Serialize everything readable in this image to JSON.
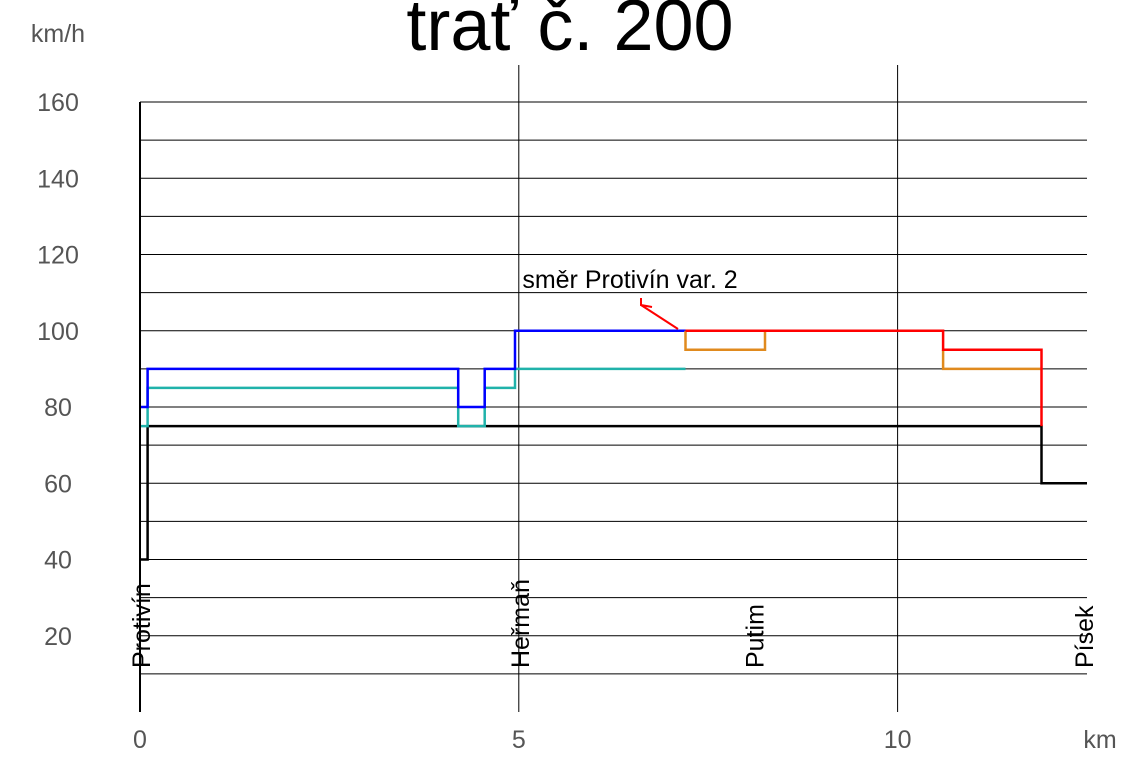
{
  "chart_data": {
    "type": "line",
    "title": "trať č. 200",
    "xlabel": "km",
    "ylabel": "km/h",
    "xlim": [
      0,
      12.5
    ],
    "ylim": [
      0,
      160
    ],
    "x_ticks": [
      0,
      5,
      10
    ],
    "y_ticks": [
      20,
      40,
      60,
      80,
      100,
      120,
      140,
      160
    ],
    "y_grid_step": 10,
    "grid": true,
    "stations": [
      {
        "name": "Protivín",
        "km": 0
      },
      {
        "name": "Heřmaň",
        "km": 5
      },
      {
        "name": "Putim",
        "km": 8.1
      },
      {
        "name": "Písek",
        "km": 12.45
      }
    ],
    "annotation": {
      "text": "směr Protivín var. 2",
      "x": 6.2,
      "y": 102
    },
    "series": [
      {
        "color": "#000000",
        "points": [
          [
            0,
            40
          ],
          [
            0.1,
            40
          ],
          [
            0.1,
            75
          ],
          [
            11.9,
            75
          ],
          [
            11.9,
            60
          ],
          [
            12.5,
            60
          ]
        ]
      },
      {
        "color": "#20b2aa",
        "points": [
          [
            0,
            75
          ],
          [
            0.1,
            75
          ],
          [
            0.1,
            85
          ],
          [
            4.2,
            85
          ],
          [
            4.2,
            75
          ],
          [
            4.55,
            75
          ],
          [
            4.55,
            85
          ],
          [
            4.95,
            85
          ],
          [
            4.95,
            90
          ],
          [
            7.2,
            90
          ]
        ]
      },
      {
        "color": "#0000ff",
        "points": [
          [
            0,
            80
          ],
          [
            0.1,
            80
          ],
          [
            0.1,
            90
          ],
          [
            4.2,
            90
          ],
          [
            4.2,
            80
          ],
          [
            4.55,
            80
          ],
          [
            4.55,
            90
          ],
          [
            4.95,
            90
          ],
          [
            4.95,
            100
          ],
          [
            7.2,
            100
          ]
        ]
      },
      {
        "color": "#e08a1e",
        "points": [
          [
            7.2,
            100
          ],
          [
            7.2,
            95
          ],
          [
            8.25,
            95
          ],
          [
            8.25,
            100
          ]
        ]
      },
      {
        "color": "#e08a1e",
        "points": [
          [
            10.6,
            95
          ],
          [
            10.6,
            90
          ],
          [
            11.9,
            90
          ]
        ]
      },
      {
        "color": "#ff0000",
        "points": [
          [
            7.2,
            100
          ],
          [
            10.6,
            100
          ],
          [
            10.6,
            95
          ],
          [
            11.9,
            95
          ],
          [
            11.9,
            75
          ]
        ]
      }
    ]
  }
}
